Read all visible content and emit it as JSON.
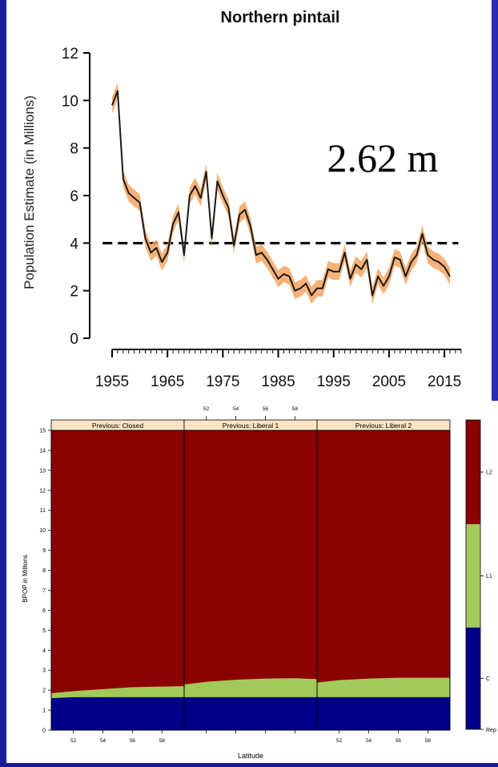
{
  "chart_data": [
    {
      "type": "line",
      "title": "Northern pintail",
      "ylabel": "Population Estimate (in Millions)",
      "xlabel": "",
      "xlim": [
        1953,
        2018
      ],
      "ylim": [
        0,
        12
      ],
      "xticks": [
        1955,
        1965,
        1975,
        1985,
        1995,
        2005,
        2015
      ],
      "yticks": [
        0,
        2,
        4,
        6,
        8,
        10,
        12
      ],
      "reference_line": 4,
      "annotation": "2.62 m",
      "grid": false,
      "series": [
        {
          "x": [
            1955,
            1956,
            1957,
            1958,
            1959,
            1960,
            1961,
            1962,
            1963,
            1964,
            1965,
            1966,
            1967,
            1968,
            1969,
            1970,
            1971,
            1972,
            1973,
            1974,
            1975,
            1976,
            1977,
            1978,
            1979,
            1980,
            1981,
            1982,
            1983,
            1984,
            1985,
            1986,
            1987,
            1988,
            1989,
            1990,
            1991,
            1992,
            1993,
            1994,
            1995,
            1996,
            1997,
            1998,
            1999,
            2000,
            2001,
            2002,
            2003,
            2004,
            2005,
            2006,
            2007,
            2008,
            2009,
            2010,
            2011,
            2012,
            2013,
            2014,
            2015,
            2016
          ],
          "y": [
            9.8,
            10.4,
            6.7,
            6.1,
            5.9,
            5.7,
            4.2,
            3.6,
            3.8,
            3.2,
            3.6,
            4.8,
            5.3,
            3.5,
            6.0,
            6.4,
            5.9,
            7.0,
            4.2,
            6.6,
            6.0,
            5.5,
            3.9,
            5.2,
            5.4,
            4.7,
            3.5,
            3.6,
            3.3,
            2.9,
            2.5,
            2.7,
            2.6,
            2.0,
            2.1,
            2.3,
            1.8,
            2.1,
            2.1,
            2.9,
            2.8,
            2.8,
            3.6,
            2.5,
            3.1,
            2.9,
            3.3,
            1.8,
            2.6,
            2.2,
            2.6,
            3.4,
            3.3,
            2.6,
            3.2,
            3.5,
            4.4,
            3.5,
            3.3,
            3.2,
            3.0,
            2.6
          ],
          "band": 0.35
        }
      ]
    },
    {
      "type": "area",
      "xlabel": "Latitude",
      "ylabel": "BPOP in Millions",
      "ylim": [
        0,
        15
      ],
      "xlim": [
        50.5,
        59.5
      ],
      "yticks": [
        0,
        1,
        2,
        3,
        4,
        5,
        6,
        7,
        8,
        9,
        10,
        11,
        12,
        13,
        14,
        15
      ],
      "xticks_bottom": [
        52,
        54,
        56,
        58
      ],
      "xticks_top": [
        52,
        54,
        56,
        58
      ],
      "panels": [
        {
          "title": "Previous: Closed",
          "x": [
            50.5,
            52,
            54,
            56,
            58,
            59.5
          ],
          "c_top": [
            1.6,
            1.65,
            1.65,
            1.65,
            1.65,
            1.65
          ],
          "l1_top": [
            1.85,
            1.95,
            2.05,
            2.15,
            2.18,
            2.2
          ]
        },
        {
          "title": "Previous: Liberal 1",
          "x": [
            50.5,
            52,
            54,
            56,
            58,
            59.5
          ],
          "c_top": [
            1.65,
            1.65,
            1.65,
            1.65,
            1.65,
            1.65
          ],
          "l1_top": [
            2.28,
            2.42,
            2.52,
            2.58,
            2.6,
            2.55
          ]
        },
        {
          "title": "Previous: Liberal 2",
          "x": [
            50.5,
            52,
            54,
            56,
            58,
            59.5
          ],
          "c_top": [
            1.65,
            1.65,
            1.65,
            1.65,
            1.65,
            1.65
          ],
          "l1_top": [
            2.38,
            2.5,
            2.58,
            2.62,
            2.62,
            2.62
          ]
        }
      ],
      "legend": {
        "placement": "right",
        "items": [
          {
            "label": "L2",
            "color": "#8b0000"
          },
          {
            "label": "L1",
            "color": "#a3c95a"
          },
          {
            "label": "C",
            "color": "#00008b"
          },
          {
            "label": "Rep",
            "color": "#00008b"
          }
        ]
      },
      "colors": {
        "c": "#00008b",
        "l1": "#a3c95a",
        "l2": "#8b0000",
        "strip": "#ffe4c4"
      }
    }
  ]
}
